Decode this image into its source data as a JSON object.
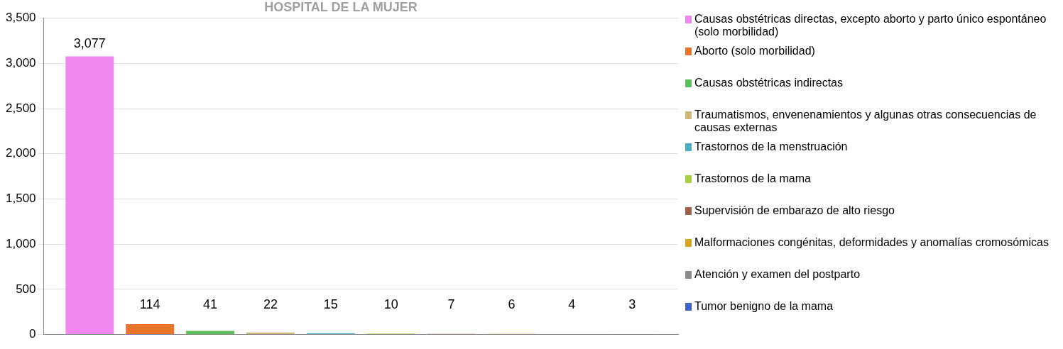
{
  "chart_data": {
    "type": "bar",
    "title": "HOSPITAL DE LA MUJER",
    "categories": [
      null
    ],
    "series": [
      {
        "name": "Causas obstétricas directas, excepto aborto y parto único espontáneo (solo morbilidad)",
        "color": "#ee88ee",
        "values": [
          3077
        ],
        "value_labels": [
          "3,077"
        ]
      },
      {
        "name": "Aborto (solo morbilidad)",
        "color": "#e8742c",
        "values": [
          114
        ],
        "value_labels": [
          "114"
        ]
      },
      {
        "name": "Causas obstétricas indirectas",
        "color": "#5cbf5c",
        "values": [
          41
        ],
        "value_labels": [
          "41"
        ]
      },
      {
        "name": "Traumatismos, envenenamientos y algunas otras consecuencias de causas externas",
        "color": "#cdb877",
        "values": [
          22
        ],
        "value_labels": [
          "22"
        ]
      },
      {
        "name": "Trastornos de la menstruación",
        "color": "#4bacc6",
        "values": [
          15
        ],
        "value_labels": [
          "15"
        ]
      },
      {
        "name": "Trastornos de la mama",
        "color": "#a6d13f",
        "values": [
          10
        ],
        "value_labels": [
          "10"
        ]
      },
      {
        "name": "Supervisión de embarazo de alto riesgo",
        "color": "#a0604a",
        "values": [
          7
        ],
        "value_labels": [
          "7"
        ]
      },
      {
        "name": "Malformaciones congénitas, deformidades y anomalías cromosómicas",
        "color": "#d6a41c",
        "values": [
          6
        ],
        "value_labels": [
          "6"
        ]
      },
      {
        "name": "Atención y examen del postparto",
        "color": "#8a8a8a",
        "values": [
          4
        ],
        "value_labels": [
          "4"
        ]
      },
      {
        "name": "Tumor benigno de la mama",
        "color": "#4062c4",
        "values": [
          3
        ],
        "value_labels": [
          "3"
        ]
      }
    ],
    "ylim": [
      0,
      3500
    ],
    "yticks": [
      {
        "value": 0,
        "label": "0"
      },
      {
        "value": 500,
        "label": "500"
      },
      {
        "value": 1000,
        "label": "1,000"
      },
      {
        "value": 1500,
        "label": "1,500"
      },
      {
        "value": 2000,
        "label": "2,000"
      },
      {
        "value": 2500,
        "label": "2,500"
      },
      {
        "value": 3000,
        "label": "3,000"
      },
      {
        "value": 3500,
        "label": "3,500"
      }
    ],
    "grid": "y",
    "legend": "right"
  }
}
